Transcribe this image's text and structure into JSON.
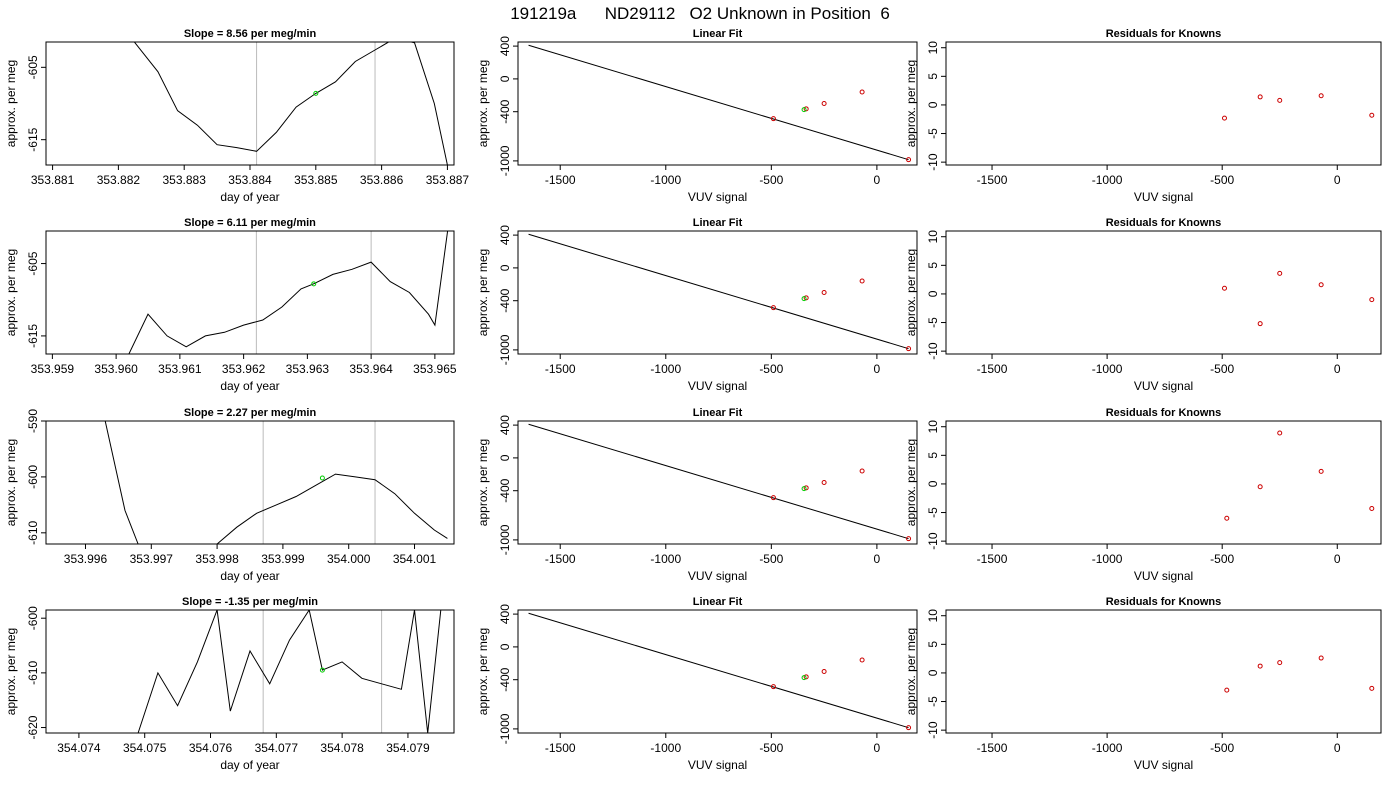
{
  "title": "191219a      ND29112   O2 Unknown in Position  6",
  "colors": {
    "line": "#000000",
    "known": "#cc0000",
    "unknown": "#00cc00",
    "vline": "#bbbbbb",
    "frame": "#000000"
  },
  "chart_data": [
    {
      "row": 1,
      "type": "line",
      "title": "Slope =  8.56  per meg/min",
      "xlabel": "day of year",
      "ylabel": "approx. per meg",
      "xlim": [
        353.8809,
        353.8871
      ],
      "ylim": [
        -618.5,
        -601.5
      ],
      "xticks": [
        "353.881",
        "353.882",
        "353.883",
        "353.884",
        "353.885",
        "353.886",
        "353.887"
      ],
      "yticks": [
        "-605",
        "-615"
      ],
      "vlines": [
        353.8841,
        353.8859
      ],
      "point": [
        353.885,
        -608.6
      ],
      "trace": [
        [
          353.8822,
          -601
        ],
        [
          353.8826,
          -605.6
        ],
        [
          353.8829,
          -611
        ],
        [
          353.8832,
          -613
        ],
        [
          353.8835,
          -615.7
        ],
        [
          353.8838,
          -616.1
        ],
        [
          353.8841,
          -616.6
        ],
        [
          353.8844,
          -614
        ],
        [
          353.8847,
          -610.5
        ],
        [
          353.885,
          -608.6
        ],
        [
          353.8853,
          -607
        ],
        [
          353.8856,
          -604.2
        ],
        [
          353.8859,
          -602.6
        ],
        [
          353.8862,
          -601
        ],
        [
          353.8865,
          -601.6
        ],
        [
          353.8868,
          -610
        ],
        [
          353.887,
          -618.5
        ]
      ]
    },
    {
      "row": 1,
      "type": "scatter",
      "title": "Linear Fit",
      "xlabel": "VUV signal",
      "ylabel": "approx. per meg",
      "xlim": [
        -1700,
        190
      ],
      "ylim": [
        -1050,
        450
      ],
      "xticks": [
        "-1500",
        "-1000",
        "-500",
        "0"
      ],
      "yticks": [
        "400",
        "0",
        "-400",
        "-1000"
      ],
      "fit": [
        [
          -1650,
          410
        ],
        [
          150,
          -985
        ]
      ],
      "knowns": [
        [
          -490,
          -485
        ],
        [
          -335,
          -365
        ],
        [
          -250,
          -300
        ],
        [
          -70,
          -160
        ],
        [
          150,
          -985
        ]
      ],
      "unknown": [
        -345,
        -375
      ]
    },
    {
      "row": 1,
      "type": "scatter",
      "title": "Residuals for Knowns",
      "xlabel": "VUV signal",
      "ylabel": "approx. per meg",
      "xlim": [
        -1700,
        190
      ],
      "ylim": [
        -10.5,
        11
      ],
      "xticks": [
        "-1500",
        "-1000",
        "-500",
        "0"
      ],
      "yticks": [
        "10",
        "5",
        "0",
        "-5",
        "-10"
      ],
      "points": [
        [
          -490,
          -2.3
        ],
        [
          -335,
          1.4
        ],
        [
          -250,
          0.8
        ],
        [
          -70,
          1.6
        ],
        [
          150,
          -1.8
        ]
      ]
    },
    {
      "row": 2,
      "type": "line",
      "title": "Slope =  6.11  per meg/min",
      "xlabel": "day of year",
      "ylabel": "approx. per meg",
      "xlim": [
        353.9589,
        353.9653
      ],
      "ylim": [
        -617.5,
        -600.5
      ],
      "xticks": [
        "353.959",
        "353.960",
        "353.961",
        "353.962",
        "353.963",
        "353.964",
        "353.965"
      ],
      "yticks": [
        "-605",
        "-615"
      ],
      "vlines": [
        353.9622,
        353.964
      ],
      "point": [
        353.9631,
        -607.8
      ],
      "trace": [
        [
          353.9602,
          -617.5
        ],
        [
          353.9605,
          -612
        ],
        [
          353.9608,
          -615
        ],
        [
          353.9611,
          -616.5
        ],
        [
          353.9614,
          -615
        ],
        [
          353.9617,
          -614.5
        ],
        [
          353.962,
          -613.5
        ],
        [
          353.9623,
          -612.8
        ],
        [
          353.9626,
          -611
        ],
        [
          353.9629,
          -608.5
        ],
        [
          353.9631,
          -607.8
        ],
        [
          353.9634,
          -606.5
        ],
        [
          353.9637,
          -605.8
        ],
        [
          353.964,
          -604.8
        ],
        [
          353.9643,
          -607.5
        ],
        [
          353.9646,
          -609
        ],
        [
          353.9649,
          -612
        ],
        [
          353.965,
          -613.5
        ],
        [
          353.9652,
          -600.5
        ]
      ]
    },
    {
      "row": 2,
      "type": "scatter",
      "title": "Linear Fit",
      "xlabel": "VUV signal",
      "ylabel": "approx. per meg",
      "xlim": [
        -1700,
        190
      ],
      "ylim": [
        -1050,
        450
      ],
      "xticks": [
        "-1500",
        "-1000",
        "-500",
        "0"
      ],
      "yticks": [
        "400",
        "0",
        "-400",
        "-1000"
      ],
      "fit": [
        [
          -1650,
          410
        ],
        [
          150,
          -985
        ]
      ],
      "knowns": [
        [
          -490,
          -485
        ],
        [
          -335,
          -365
        ],
        [
          -250,
          -300
        ],
        [
          -70,
          -160
        ],
        [
          150,
          -985
        ]
      ],
      "unknown": [
        -345,
        -375
      ]
    },
    {
      "row": 2,
      "type": "scatter",
      "title": "Residuals for Knowns",
      "xlabel": "VUV signal",
      "ylabel": "approx. per meg",
      "xlim": [
        -1700,
        190
      ],
      "ylim": [
        -10.5,
        11
      ],
      "xticks": [
        "-1500",
        "-1000",
        "-500",
        "0"
      ],
      "yticks": [
        "10",
        "5",
        "0",
        "-5",
        "-10"
      ],
      "points": [
        [
          -490,
          1.0
        ],
        [
          -335,
          -5.2
        ],
        [
          -250,
          3.6
        ],
        [
          -70,
          1.6
        ],
        [
          150,
          -1.0
        ]
      ]
    },
    {
      "row": 3,
      "type": "line",
      "title": "Slope =  2.27  per meg/min",
      "xlabel": "day of year",
      "ylabel": "approx. per meg",
      "xlim": [
        353.9954,
        354.0016
      ],
      "ylim": [
        -612,
        -590
      ],
      "xticks": [
        "353.996",
        "353.997",
        "353.998",
        "353.999",
        "354.000",
        "354.001"
      ],
      "yticks": [
        "-590",
        "-600",
        "-610"
      ],
      "vlines": [
        353.9987,
        354.0004
      ],
      "point": [
        353.9996,
        -600.2
      ],
      "trace": [
        [
          353.9963,
          -590
        ],
        [
          353.9966,
          -606
        ],
        [
          353.9968,
          -612
        ],
        [
          353.998,
          -612
        ],
        [
          353.9983,
          -609
        ],
        [
          353.9986,
          -606.5
        ],
        [
          353.9989,
          -605
        ],
        [
          353.9992,
          -603.5
        ],
        [
          353.9995,
          -601.5
        ],
        [
          353.9998,
          -599.5
        ],
        [
          354.0001,
          -600
        ],
        [
          354.0004,
          -600.5
        ],
        [
          354.0007,
          -603
        ],
        [
          354.001,
          -606.5
        ],
        [
          354.0013,
          -609.5
        ],
        [
          354.0015,
          -611
        ]
      ]
    },
    {
      "row": 3,
      "type": "scatter",
      "title": "Linear Fit",
      "xlabel": "VUV signal",
      "ylabel": "approx. per meg",
      "xlim": [
        -1700,
        190
      ],
      "ylim": [
        -1050,
        450
      ],
      "xticks": [
        "-1500",
        "-1000",
        "-500",
        "0"
      ],
      "yticks": [
        "400",
        "0",
        "-400",
        "-1000"
      ],
      "fit": [
        [
          -1650,
          410
        ],
        [
          150,
          -985
        ]
      ],
      "knowns": [
        [
          -490,
          -485
        ],
        [
          -335,
          -365
        ],
        [
          -250,
          -300
        ],
        [
          -70,
          -160
        ],
        [
          150,
          -985
        ]
      ],
      "unknown": [
        -345,
        -375
      ]
    },
    {
      "row": 3,
      "type": "scatter",
      "title": "Residuals for Knowns",
      "xlabel": "VUV signal",
      "ylabel": "approx. per meg",
      "xlim": [
        -1700,
        190
      ],
      "ylim": [
        -10.5,
        11
      ],
      "xticks": [
        "-1500",
        "-1000",
        "-500",
        "0"
      ],
      "yticks": [
        "10",
        "5",
        "0",
        "-5",
        "-10"
      ],
      "points": [
        [
          -480,
          -6.0
        ],
        [
          -335,
          -0.5
        ],
        [
          -250,
          8.9
        ],
        [
          -70,
          2.2
        ],
        [
          150,
          -4.3
        ]
      ]
    },
    {
      "row": 4,
      "type": "line",
      "title": "Slope =  -1.35  per meg/min",
      "xlabel": "day of year",
      "ylabel": "approx. per meg",
      "xlim": [
        354.0735,
        354.0797
      ],
      "ylim": [
        -621,
        -598.5
      ],
      "xticks": [
        "354.074",
        "354.075",
        "354.076",
        "354.077",
        "354.078",
        "354.079"
      ],
      "yticks": [
        "-600",
        "-610",
        "-620"
      ],
      "vlines": [
        354.0768,
        354.0786
      ],
      "point": [
        354.0777,
        -609.5
      ],
      "trace": [
        [
          354.0749,
          -621
        ],
        [
          354.0752,
          -610
        ],
        [
          354.0755,
          -616
        ],
        [
          354.0758,
          -608
        ],
        [
          354.0761,
          -598.5
        ],
        [
          354.0763,
          -617
        ],
        [
          354.0766,
          -606
        ],
        [
          354.0769,
          -612
        ],
        [
          354.0772,
          -604
        ],
        [
          354.0775,
          -598.5
        ],
        [
          354.0777,
          -609.5
        ],
        [
          354.078,
          -608
        ],
        [
          354.0783,
          -611
        ],
        [
          354.0786,
          -612
        ],
        [
          354.0789,
          -613
        ],
        [
          354.0791,
          -598.5
        ],
        [
          354.0793,
          -621
        ],
        [
          354.0795,
          -598.5
        ]
      ]
    },
    {
      "row": 4,
      "type": "scatter",
      "title": "Linear Fit",
      "xlabel": "VUV signal",
      "ylabel": "approx. per meg",
      "xlim": [
        -1700,
        190
      ],
      "ylim": [
        -1050,
        450
      ],
      "xticks": [
        "-1500",
        "-1000",
        "-500",
        "0"
      ],
      "yticks": [
        "400",
        "0",
        "-400",
        "-1000"
      ],
      "fit": [
        [
          -1650,
          410
        ],
        [
          150,
          -985
        ]
      ],
      "knowns": [
        [
          -490,
          -485
        ],
        [
          -335,
          -365
        ],
        [
          -250,
          -300
        ],
        [
          -70,
          -160
        ],
        [
          150,
          -985
        ]
      ],
      "unknown": [
        -345,
        -375
      ]
    },
    {
      "row": 4,
      "type": "scatter",
      "title": "Residuals for Knowns",
      "xlabel": "VUV signal",
      "ylabel": "approx. per meg",
      "xlim": [
        -1700,
        190
      ],
      "ylim": [
        -10.5,
        11
      ],
      "xticks": [
        "-1500",
        "-1000",
        "-500",
        "0"
      ],
      "yticks": [
        "10",
        "5",
        "0",
        "-5",
        "-10"
      ],
      "points": [
        [
          -480,
          -3.0
        ],
        [
          -335,
          1.2
        ],
        [
          -250,
          1.8
        ],
        [
          -70,
          2.6
        ],
        [
          150,
          -2.7
        ]
      ]
    }
  ]
}
